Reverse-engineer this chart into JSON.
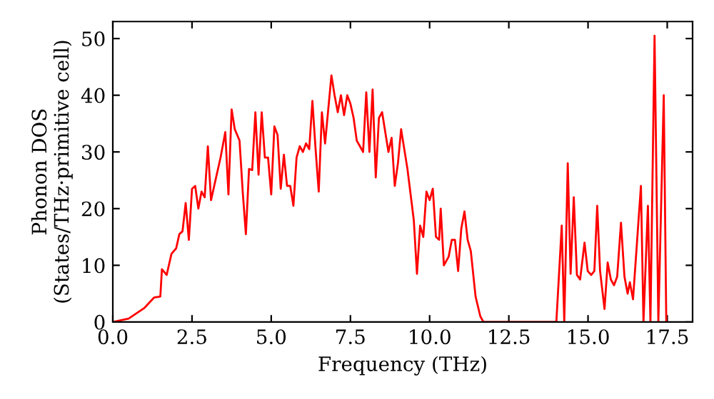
{
  "chart_data": {
    "type": "line",
    "xlabel": "Frequency (THz)",
    "ylabel": "Phonon DOS\n(States/THz·primitive cell)",
    "series": [
      {
        "color": "#ff0000",
        "x": [
          0,
          0.5,
          1.0,
          1.3,
          1.5,
          1.55,
          1.7,
          1.85,
          2.0,
          2.1,
          2.2,
          2.3,
          2.4,
          2.5,
          2.6,
          2.7,
          2.8,
          2.9,
          3.0,
          3.1,
          3.2,
          3.4,
          3.55,
          3.65,
          3.75,
          3.85,
          4.0,
          4.1,
          4.2,
          4.3,
          4.4,
          4.5,
          4.6,
          4.7,
          4.8,
          4.9,
          5.0,
          5.1,
          5.2,
          5.3,
          5.4,
          5.5,
          5.6,
          5.7,
          5.8,
          5.9,
          6.0,
          6.1,
          6.2,
          6.3,
          6.4,
          6.5,
          6.6,
          6.7,
          6.9,
          7.0,
          7.1,
          7.2,
          7.3,
          7.4,
          7.5,
          7.6,
          7.7,
          7.8,
          7.9,
          8.0,
          8.1,
          8.2,
          8.3,
          8.4,
          8.5,
          8.7,
          8.8,
          8.9,
          9.0,
          9.1,
          9.3,
          9.5,
          9.6,
          9.7,
          9.8,
          9.9,
          10.0,
          10.1,
          10.2,
          10.3,
          10.35,
          10.45,
          10.6,
          10.7,
          10.8,
          10.9,
          11.0,
          11.1,
          11.2,
          11.3,
          11.45,
          11.6,
          11.7,
          14.0,
          14.17,
          14.25,
          14.36,
          14.45,
          14.55,
          14.65,
          14.75,
          14.89,
          14.99,
          15.1,
          15.2,
          15.29,
          15.38,
          15.52,
          15.62,
          15.72,
          15.82,
          15.92,
          16.04,
          16.15,
          16.25,
          16.32,
          16.42,
          16.67,
          16.75,
          16.89,
          16.97,
          17.1,
          17.22,
          17.39,
          17.47
        ],
        "values": [
          0,
          0.6,
          2.5,
          4.3,
          4.5,
          9.3,
          8.3,
          12,
          13,
          15.5,
          16,
          21,
          14.5,
          23.5,
          24,
          20,
          23,
          22,
          31,
          21.5,
          24,
          29,
          33.5,
          22.5,
          37.5,
          34,
          32,
          23,
          15.5,
          27,
          26.8,
          37,
          26,
          37,
          29,
          29,
          22.5,
          34.5,
          33,
          23.5,
          29.5,
          24,
          24,
          20.5,
          29,
          31,
          30,
          31.5,
          30.5,
          39,
          30.5,
          23,
          37,
          31.5,
          43.5,
          40,
          37,
          40,
          36.5,
          40,
          38.5,
          36,
          32,
          31,
          30,
          40.5,
          30,
          41,
          25.5,
          36,
          37,
          30,
          32.5,
          24,
          28,
          34,
          27,
          18,
          8.5,
          17,
          15,
          23,
          21.5,
          23.5,
          15,
          14.5,
          20,
          10,
          11.5,
          14.5,
          14.5,
          9,
          16.5,
          19.5,
          14.5,
          12.5,
          4.5,
          1,
          0,
          0,
          17,
          0,
          28,
          8.5,
          22,
          8.3,
          7.5,
          14,
          9,
          8.3,
          9,
          20.5,
          9,
          2.3,
          10.5,
          7.5,
          6.5,
          8,
          17.5,
          8,
          5,
          7,
          4,
          24,
          0,
          20.5,
          0,
          50.5,
          0,
          40,
          0
        ]
      }
    ],
    "xlim": [
      0,
      18.3
    ],
    "ylim": [
      0,
      53
    ],
    "xticks": [
      {
        "value": 0,
        "label": "0.0"
      },
      2.5,
      {
        "value": 5,
        "label": "5.0"
      },
      7.5,
      {
        "value": 10,
        "label": "10.0"
      },
      12.5,
      {
        "value": 15,
        "label": "15.0"
      },
      17.5
    ],
    "yticks": [
      0,
      10,
      20,
      30,
      40,
      50
    ],
    "grid": false,
    "legend": false,
    "marker": "none",
    "line_style": "solid"
  }
}
